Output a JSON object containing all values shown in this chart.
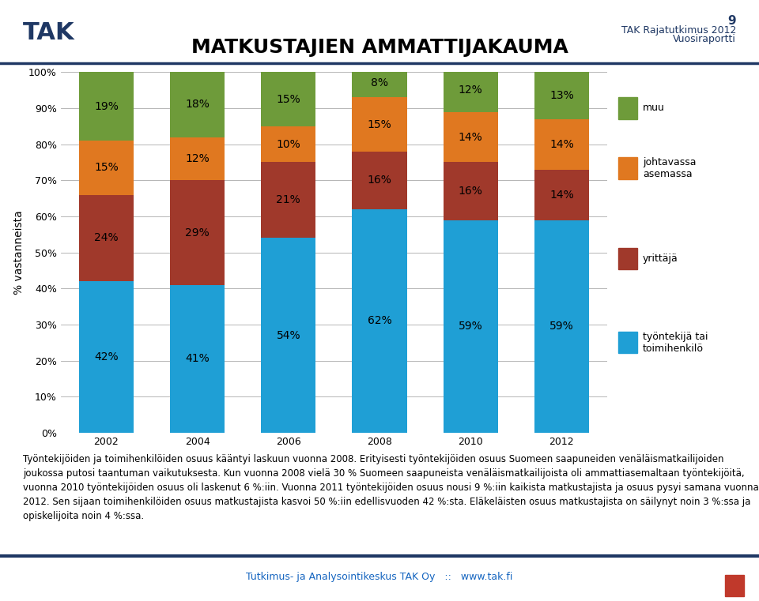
{
  "title": "MATKUSTAJIEN AMMATTIJAKAUMA",
  "page_number": "9",
  "header_line1": "TAK Rajatutkimus 2012",
  "header_line2": "Vuosiraportti",
  "years": [
    2002,
    2004,
    2006,
    2008,
    2010,
    2012
  ],
  "series": {
    "tyontekija": [
      42,
      41,
      54,
      62,
      59,
      59
    ],
    "yrittaja": [
      24,
      29,
      21,
      16,
      16,
      14
    ],
    "johtavassa": [
      15,
      12,
      10,
      15,
      14,
      14
    ],
    "muu": [
      19,
      18,
      15,
      8,
      12,
      13
    ]
  },
  "colors": {
    "tyontekija": "#1F9FD5",
    "yrittaja": "#A0392B",
    "johtavassa": "#E07820",
    "muu": "#6E9B3A"
  },
  "legend_labels": {
    "muu": "muu",
    "johtavassa": "johtavassa\nasemassa",
    "yrittaja": "yrittäjä",
    "tyontekija": "työntekijä tai\ntoimihenkilö"
  },
  "ylabel": "% vastanneista",
  "ylim": [
    0,
    100
  ],
  "yticks": [
    0,
    10,
    20,
    30,
    40,
    50,
    60,
    70,
    80,
    90,
    100
  ],
  "ytick_labels": [
    "0%",
    "10%",
    "20%",
    "30%",
    "40%",
    "50%",
    "60%",
    "70%",
    "80%",
    "90%",
    "100%"
  ],
  "bar_width": 0.6,
  "background_color": "#FFFFFF",
  "text_color": "#000000",
  "title_fontsize": 18,
  "label_fontsize": 10,
  "tick_fontsize": 9,
  "legend_fontsize": 9,
  "ylabel_fontsize": 10,
  "body_text": "Työntekijöiden ja toimihenkilöiden osuus kääntyi laskuun vuonna 2008. Erityisesti työntekijöiden osuus Suomeen saapuneiden venäläismatkailijoiden joukossa putosi taantuman vaikutuksesta. Kun vuonna 2008 vielä 30 % Suomeen saapuneista venäläismatkailijoista oli ammattiasemaltaan työntekijöitä, vuonna 2010 työntekijöiden osuus oli laskenut 6 %:iin. Vuonna 2011 työntekijöiden osuus nousi 9 %:iin kaikista matkustajista ja osuus pysyi samana vuonna 2012. Sen sijaan toimihenkilöiden osuus matkustajista kasvoi 50 %:iin edellisvuoden 42 %:sta. Eläkeläisten osuus matkustajista on säilynyt noin 3 %:ssa ja opiskelijoita noin 4 %:ssa.",
  "footer_text": "Tutkimus- ja Analysointikeskus TAK Oy   ::   www.tak.fi",
  "header_blue": "#1F3864",
  "footer_blue": "#1F3864"
}
